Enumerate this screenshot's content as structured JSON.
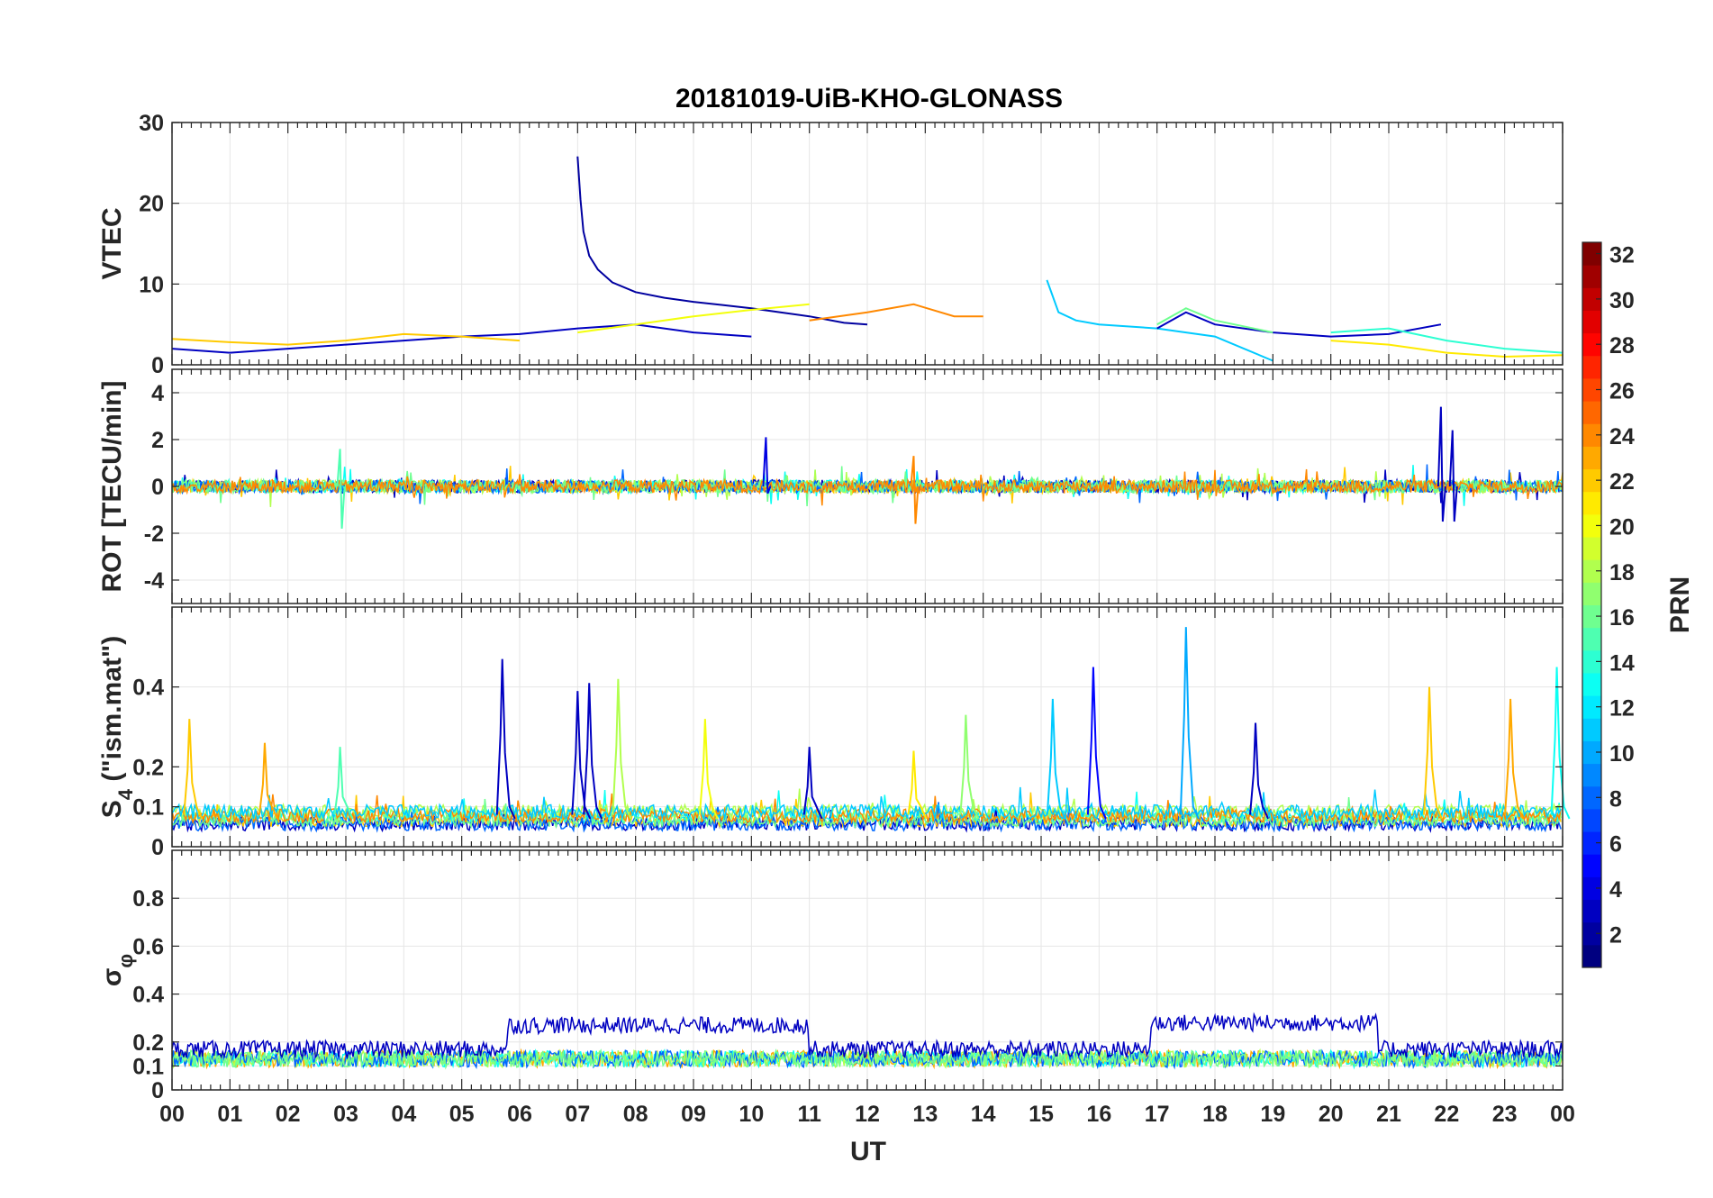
{
  "chart_data": {
    "type": "line",
    "title": "20181019-UiB-KHO-GLONASS",
    "xlabel": "UT",
    "x_tick_labels": [
      "00",
      "01",
      "02",
      "03",
      "04",
      "05",
      "06",
      "07",
      "08",
      "09",
      "10",
      "11",
      "12",
      "13",
      "14",
      "15",
      "16",
      "17",
      "18",
      "19",
      "20",
      "21",
      "22",
      "23",
      "00"
    ],
    "xlim": [
      0,
      24
    ],
    "grid": true,
    "colorbar": {
      "label": "PRN",
      "range": [
        1,
        32
      ],
      "ticks": [
        "2",
        "4",
        "6",
        "8",
        "10",
        "12",
        "14",
        "16",
        "18",
        "20",
        "22",
        "24",
        "26",
        "28",
        "30",
        "32"
      ],
      "colormap": "jet"
    },
    "panels": [
      {
        "ylabel": "VTEC",
        "ylim": [
          0,
          30
        ],
        "y_ticks": [
          "0",
          "10",
          "20",
          "30"
        ],
        "series": [
          {
            "prn": 2,
            "x": [
              7.0,
              7.05,
              7.1,
              7.2,
              7.35,
              7.6,
              8.0,
              8.5,
              9.0,
              9.5,
              10.0,
              10.5,
              11.0,
              11.6,
              12.0
            ],
            "y": [
              25.8,
              20.5,
              16.5,
              13.5,
              11.8,
              10.2,
              9.0,
              8.3,
              7.8,
              7.4,
              7.0,
              6.5,
              6.0,
              5.2,
              5.0
            ]
          },
          {
            "prn": 3,
            "x": [
              0,
              1,
              2,
              3,
              4,
              5,
              6,
              7,
              8,
              9,
              10
            ],
            "y": [
              2.0,
              1.5,
              2.0,
              2.5,
              3.0,
              3.5,
              3.8,
              4.5,
              5.0,
              4.0,
              3.5
            ]
          },
          {
            "prn": 22,
            "x": [
              0,
              1,
              2,
              3,
              4,
              5,
              6
            ],
            "y": [
              3.2,
              2.8,
              2.5,
              3.0,
              3.8,
              3.5,
              3.0
            ]
          },
          {
            "prn": 20,
            "x": [
              7,
              8,
              9,
              10,
              11
            ],
            "y": [
              4.0,
              5.0,
              6.0,
              6.8,
              7.5
            ]
          },
          {
            "prn": 24,
            "x": [
              11,
              12,
              12.8,
              13.5,
              14
            ],
            "y": [
              5.5,
              6.5,
              7.5,
              6.0,
              6.0
            ]
          },
          {
            "prn": 11,
            "x": [
              15.1,
              15.3,
              15.6,
              16,
              17,
              18,
              19
            ],
            "y": [
              10.5,
              6.5,
              5.5,
              5.0,
              4.5,
              3.5,
              0.5
            ]
          },
          {
            "prn": 3,
            "x": [
              17,
              17.5,
              18,
              19,
              20,
              21,
              21.9
            ],
            "y": [
              4.5,
              6.5,
              5.0,
              4.0,
              3.5,
              3.8,
              5.0
            ]
          },
          {
            "prn": 14,
            "x": [
              20,
              21,
              22,
              23,
              24
            ],
            "y": [
              4.0,
              4.5,
              3.0,
              2.0,
              1.5
            ]
          },
          {
            "prn": 16,
            "x": [
              17,
              17.5,
              18,
              19
            ],
            "y": [
              5.0,
              7.0,
              5.5,
              4.0
            ]
          },
          {
            "prn": 21,
            "x": [
              20,
              21,
              22,
              23,
              24
            ],
            "y": [
              3.0,
              2.5,
              1.5,
              1.0,
              1.2
            ]
          }
        ]
      },
      {
        "ylabel": "ROT [TECU/min]",
        "ylim": [
          -5,
          5
        ],
        "y_ticks": [
          "-4",
          "-2",
          "0",
          "2",
          "4"
        ],
        "events": [
          {
            "prn": 15,
            "x": 2.9,
            "y": [
              -1.8,
              1.6
            ]
          },
          {
            "prn": 4,
            "x": 10.25,
            "y": [
              -0.3,
              2.1
            ]
          },
          {
            "prn": 24,
            "x": 12.8,
            "y": [
              -1.6,
              1.3
            ]
          },
          {
            "prn": 3,
            "x": 21.9,
            "y": [
              -1.5,
              3.4
            ]
          },
          {
            "prn": 3,
            "x": 22.1,
            "y": [
              -1.5,
              2.4
            ]
          }
        ]
      },
      {
        "ylabel": "S4 (\"ism.mat\")",
        "ylabel_main": "S",
        "ylabel_sub": "4",
        "ylabel_rest": " (\"ism.mat\")",
        "ylim": [
          0,
          0.6
        ],
        "y_ticks": [
          "0",
          "0.1",
          "0.2",
          "0.4"
        ],
        "spikes": [
          {
            "prn": 22,
            "x": 0.3,
            "y": 0.32
          },
          {
            "prn": 23,
            "x": 1.6,
            "y": 0.26
          },
          {
            "prn": 15,
            "x": 2.9,
            "y": 0.25
          },
          {
            "prn": 3,
            "x": 5.7,
            "y": 0.47
          },
          {
            "prn": 3,
            "x": 7.0,
            "y": 0.39
          },
          {
            "prn": 3,
            "x": 7.2,
            "y": 0.41
          },
          {
            "prn": 18,
            "x": 7.7,
            "y": 0.42
          },
          {
            "prn": 20,
            "x": 9.2,
            "y": 0.32
          },
          {
            "prn": 3,
            "x": 11.0,
            "y": 0.25
          },
          {
            "prn": 21,
            "x": 12.8,
            "y": 0.24
          },
          {
            "prn": 17,
            "x": 13.7,
            "y": 0.33
          },
          {
            "prn": 11,
            "x": 15.2,
            "y": 0.37
          },
          {
            "prn": 5,
            "x": 15.9,
            "y": 0.45
          },
          {
            "prn": 10,
            "x": 17.5,
            "y": 0.55
          },
          {
            "prn": 3,
            "x": 18.7,
            "y": 0.31
          },
          {
            "prn": 22,
            "x": 21.7,
            "y": 0.4
          },
          {
            "prn": 23,
            "x": 23.1,
            "y": 0.37
          },
          {
            "prn": 13,
            "x": 23.9,
            "y": 0.45
          }
        ]
      },
      {
        "ylabel": "σφ",
        "ylabel_main": "σ",
        "ylabel_sub": "φ",
        "ylim": [
          0,
          1
        ],
        "y_ticks": [
          "0",
          "0.1",
          "0.2",
          "0.4",
          "0.6",
          "0.8"
        ],
        "baseline": {
          "prn": 23,
          "y": 0.13
        },
        "elevated_bands": [
          {
            "prn": 3,
            "x": [
              5.8,
              11.0
            ],
            "y": 0.23
          },
          {
            "prn": 3,
            "x": [
              16.9,
              20.8
            ],
            "y": 0.24
          }
        ]
      }
    ]
  }
}
